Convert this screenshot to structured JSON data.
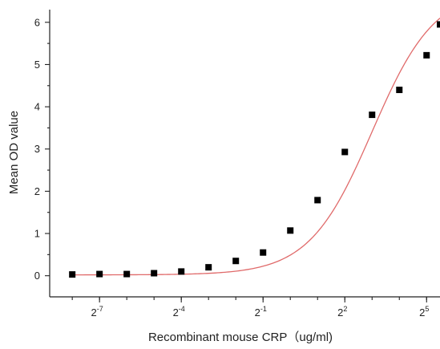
{
  "chart_data": {
    "type": "scatter",
    "title": "",
    "xlabel": "Recombinant mouse CRP（ug/ml)",
    "ylabel": "Mean OD value",
    "x_scale": "log2",
    "x_ticks": [
      {
        "value": 0.0078125,
        "base": "2",
        "exponent": "-7"
      },
      {
        "value": 0.0625,
        "base": "2",
        "exponent": "-4"
      },
      {
        "value": 0.5,
        "base": "2",
        "exponent": "-1"
      },
      {
        "value": 4,
        "base": "2",
        "exponent": "2"
      },
      {
        "value": 32,
        "base": "2",
        "exponent": "5"
      }
    ],
    "y_ticks": [
      "0",
      "1",
      "2",
      "3",
      "4",
      "5",
      "6"
    ],
    "ylim": [
      -0.5,
      6.3
    ],
    "xlim": [
      0.0022,
      45
    ],
    "grid": false,
    "legend": "none",
    "colors": {
      "points": "#000000",
      "fit_line": "#e06a6a",
      "axes": "#222222"
    },
    "series": [
      {
        "x": [
          0.00390625,
          0.0078125,
          0.015625,
          0.03125,
          0.0625,
          0.125,
          0.25,
          0.5,
          1,
          2,
          4,
          8,
          16,
          32,
          45
        ],
        "y": [
          0.03,
          0.04,
          0.04,
          0.06,
          0.1,
          0.2,
          0.35,
          0.55,
          1.07,
          1.79,
          2.93,
          3.81,
          4.4,
          5.22,
          5.95
        ]
      }
    ],
    "fit": {
      "type": "sigmoid",
      "bottom": 0.02,
      "top": 6.8,
      "ec50": 8,
      "hill": 1.25
    }
  }
}
